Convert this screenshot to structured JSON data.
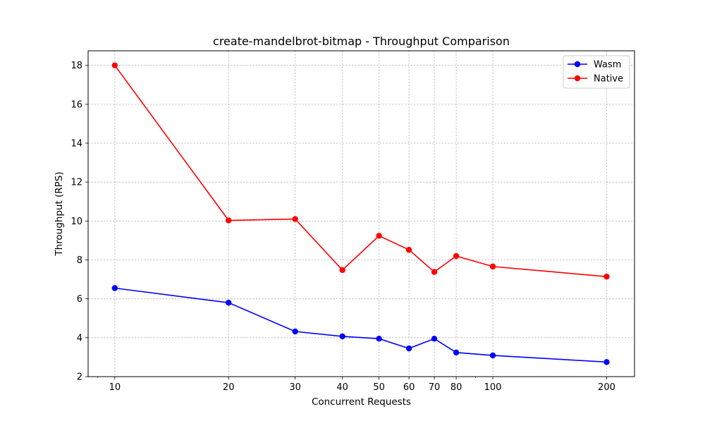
{
  "chart_data": {
    "type": "line",
    "title": "create-mandelbrot-bitmap - Throughput Comparison",
    "xlabel": "Concurrent Requests",
    "ylabel": "Throughput (RPS)",
    "x_scale": "log",
    "x": [
      10,
      20,
      30,
      40,
      50,
      60,
      70,
      80,
      100,
      200
    ],
    "xticks": [
      10,
      20,
      30,
      40,
      50,
      60,
      70,
      80,
      100,
      200
    ],
    "xlim": [
      8.5,
      237
    ],
    "ylim": [
      2,
      18.75
    ],
    "yticks": [
      2,
      4,
      6,
      8,
      10,
      12,
      14,
      16,
      18
    ],
    "grid": true,
    "legend_position": "top-right",
    "series": [
      {
        "name": "Wasm",
        "color": "#0000ff",
        "values": [
          6.55,
          5.8,
          4.32,
          4.07,
          3.95,
          3.45,
          3.95,
          3.24,
          3.09,
          2.75
        ]
      },
      {
        "name": "Native",
        "color": "#ff0000",
        "values": [
          18.0,
          10.03,
          10.1,
          7.48,
          9.24,
          8.52,
          7.38,
          8.2,
          7.66,
          7.14
        ]
      }
    ]
  }
}
